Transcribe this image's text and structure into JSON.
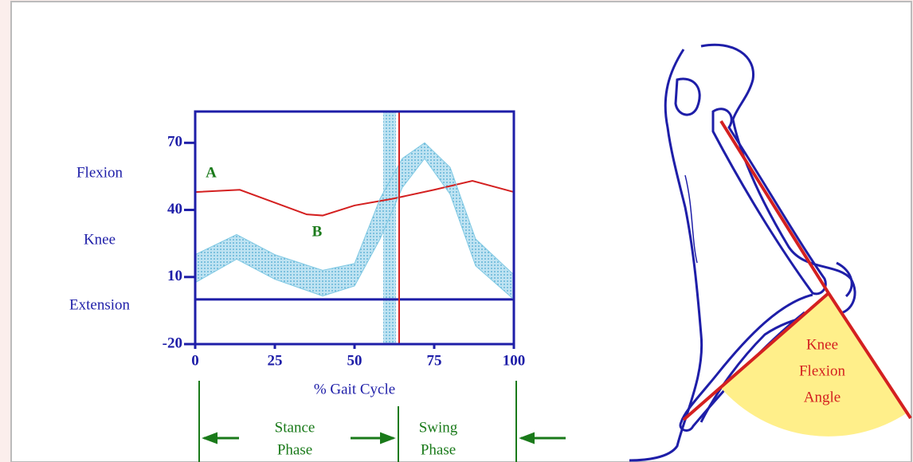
{
  "chart_data": {
    "type": "line",
    "xlabel": "% Gait Cycle",
    "side_labels": [
      "Flexion",
      "Knee",
      "Extension"
    ],
    "annotations": [
      "A",
      "B"
    ],
    "phases": [
      [
        "Stance",
        "Phase"
      ],
      [
        "Swing",
        "Phase"
      ]
    ],
    "figure_label": [
      "Knee",
      "Flexion",
      "Angle"
    ],
    "xlim": [
      0,
      100
    ],
    "xticks": [
      0,
      25,
      50,
      75,
      100
    ],
    "ylim": [
      -20,
      84
    ],
    "yticks": [
      70,
      40,
      10,
      -20
    ],
    "toe_off_band": [
      59,
      63
    ],
    "toe_off_line": 64,
    "series": [
      {
        "color": "#d42020",
        "x": [
          0,
          14,
          35,
          40,
          50,
          62,
          75,
          87,
          100
        ],
        "values": [
          48,
          49,
          38,
          37.5,
          42,
          45,
          49,
          53,
          48
        ]
      },
      {
        "color": "#7ec8e3",
        "x": [
          0,
          13,
          25,
          40,
          50,
          58,
          65,
          72,
          80,
          88,
          100
        ],
        "values": [
          20,
          29,
          20,
          13,
          16,
          45,
          63,
          70,
          59,
          27,
          11
        ]
      },
      {
        "color": "#7ec8e3",
        "x": [
          0,
          13,
          25,
          40,
          50,
          58,
          65,
          72,
          80,
          88,
          100
        ],
        "values": [
          7.5,
          18,
          9,
          1.5,
          6,
          27,
          50,
          63,
          47,
          15,
          0
        ]
      }
    ]
  }
}
